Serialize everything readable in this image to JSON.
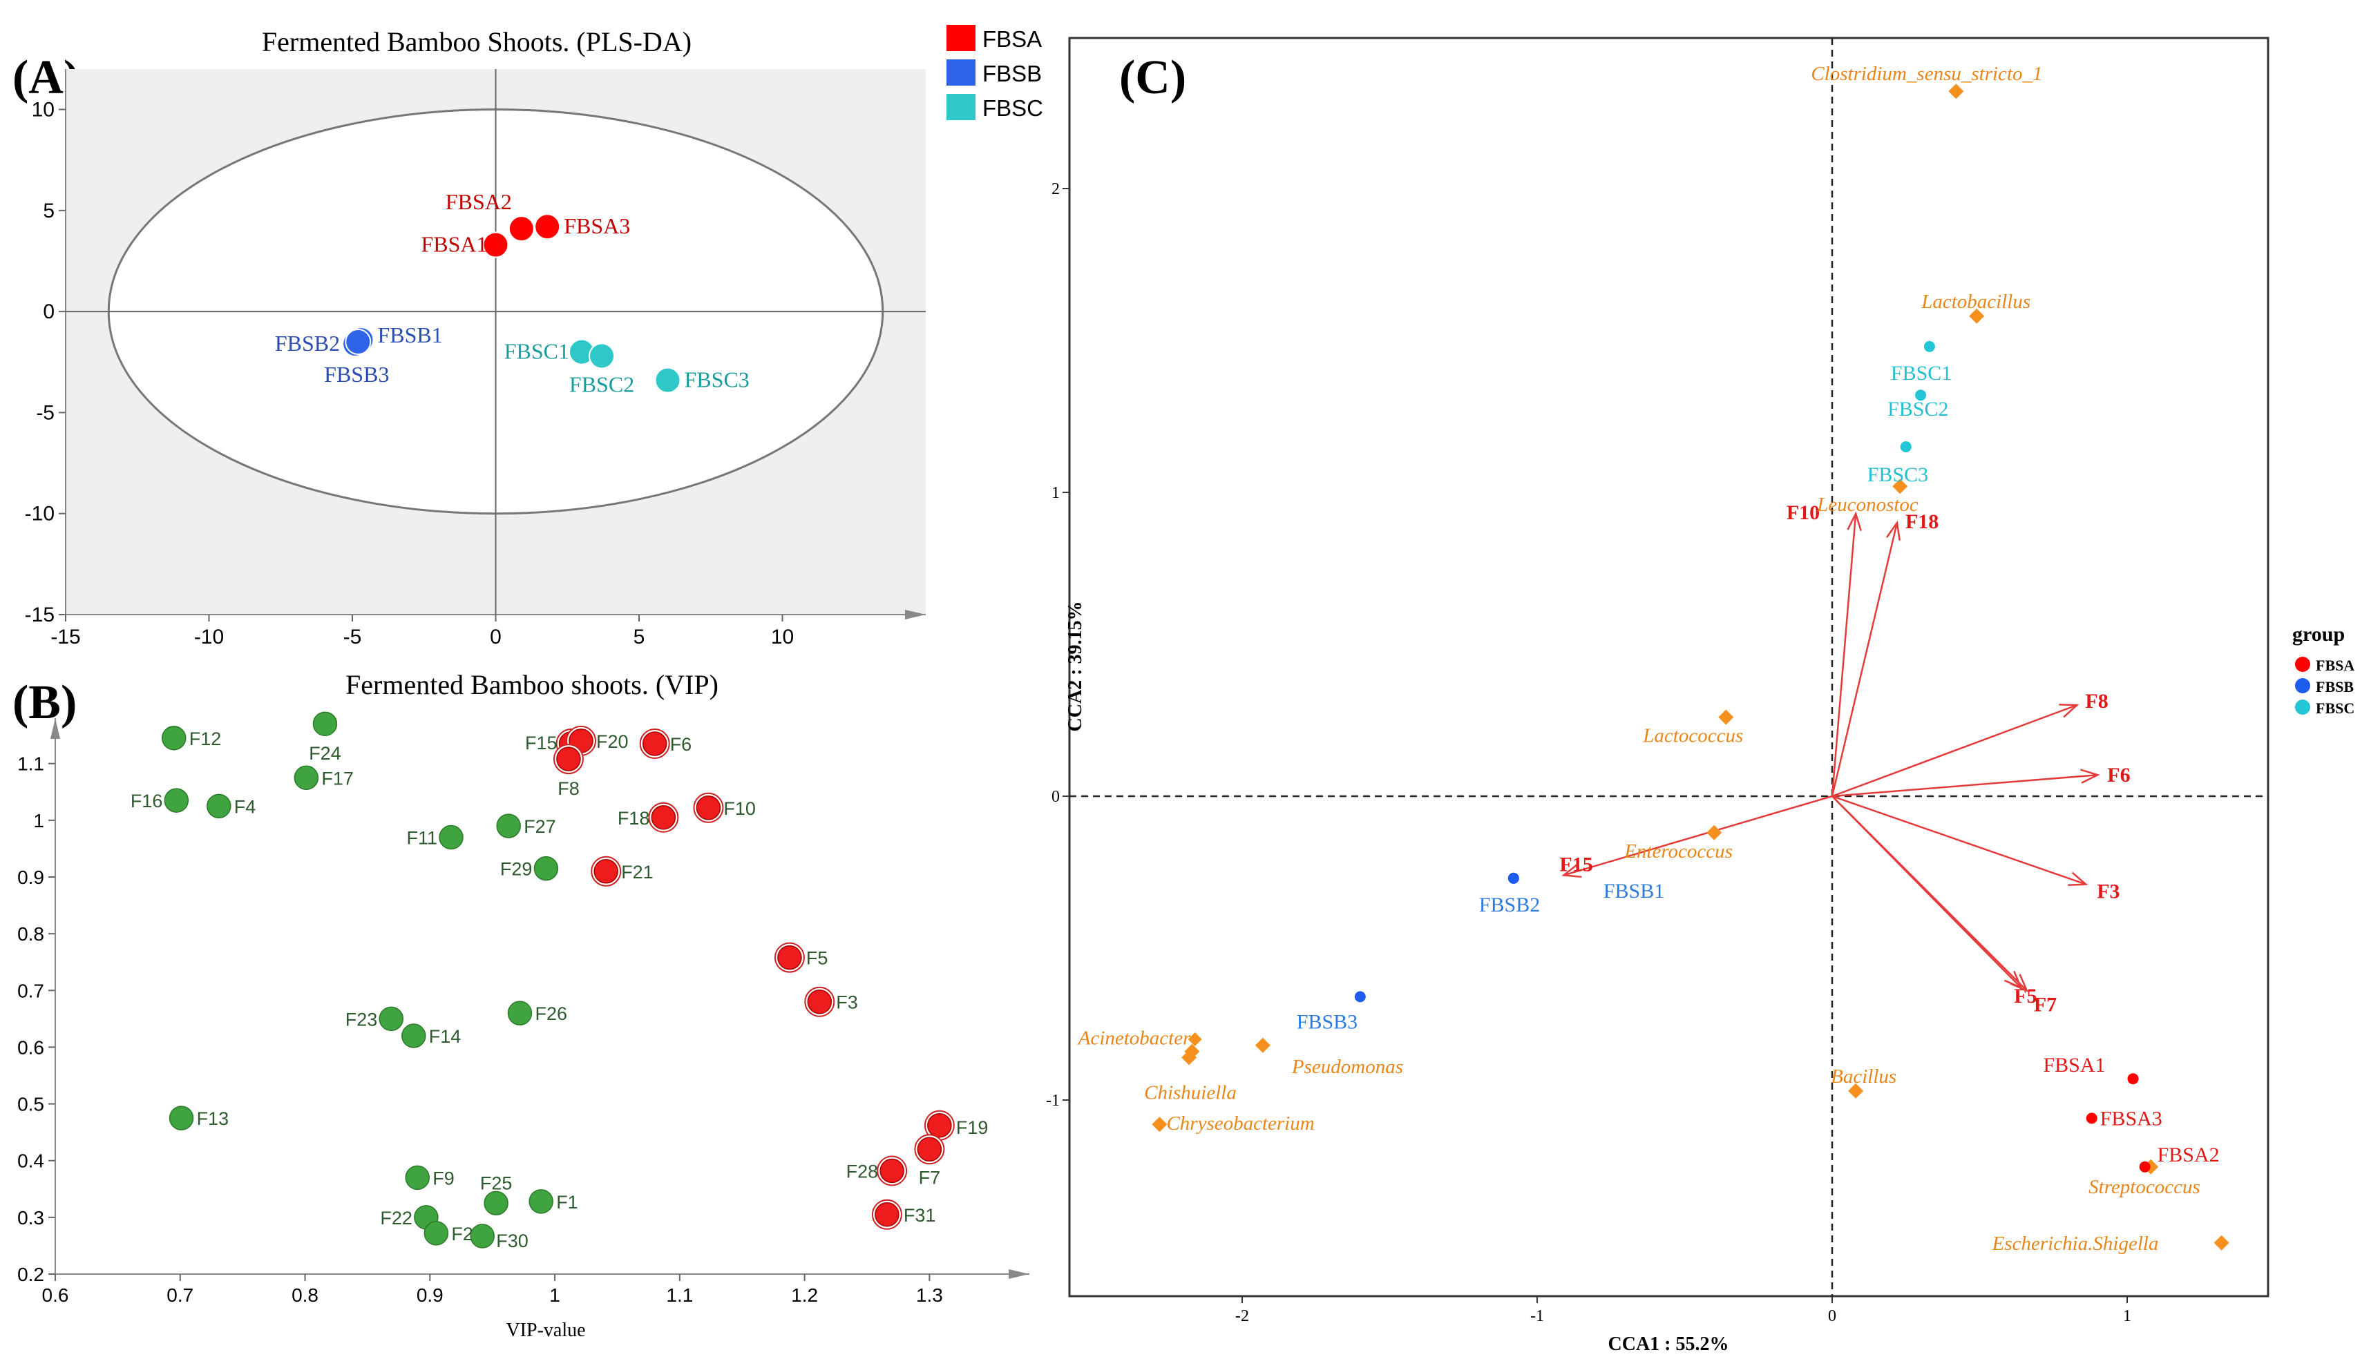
{
  "chart_data": [
    {
      "panel_label": "(A)",
      "type": "scatter",
      "title": "Fermented Bamboo Shoots. (PLS-DA)",
      "xlim": [
        -15,
        15
      ],
      "ylim": [
        -15,
        12
      ],
      "x_ticks": [
        "-15",
        "-10",
        "-5",
        "0",
        "5",
        "10"
      ],
      "y_ticks": [
        "10",
        "5",
        "0",
        "-5",
        "-10",
        "-15"
      ],
      "legend": [
        {
          "label": "FBSA",
          "color": "#ff0000"
        },
        {
          "label": "FBSB",
          "color": "#2f64e8"
        },
        {
          "label": "FBSC",
          "color": "#2ec8c8"
        }
      ],
      "ellipse": {
        "cx": 0,
        "cy": 0,
        "rx": 13.5,
        "ry": 10
      },
      "points": [
        {
          "label": "FBSA1",
          "x": 0.0,
          "y": 3.3,
          "group": "FBSA"
        },
        {
          "label": "FBSA2",
          "x": 0.9,
          "y": 4.1,
          "group": "FBSA"
        },
        {
          "label": "FBSA3",
          "x": 1.8,
          "y": 4.2,
          "group": "FBSA"
        },
        {
          "label": "FBSB1",
          "x": -4.7,
          "y": -1.4,
          "group": "FBSB"
        },
        {
          "label": "FBSB2",
          "x": -4.9,
          "y": -1.6,
          "group": "FBSB"
        },
        {
          "label": "FBSB3",
          "x": -4.8,
          "y": -1.5,
          "group": "FBSB"
        },
        {
          "label": "FBSC1",
          "x": 3.0,
          "y": -2.0,
          "group": "FBSC"
        },
        {
          "label": "FBSC2",
          "x": 3.7,
          "y": -2.2,
          "group": "FBSC"
        },
        {
          "label": "FBSC3",
          "x": 6.0,
          "y": -3.4,
          "group": "FBSC"
        }
      ]
    },
    {
      "panel_label": "(B)",
      "type": "scatter",
      "title": "Fermented Bamboo shoots. (VIP)",
      "xlabel": "VIP-value",
      "xlim": [
        0.6,
        1.38
      ],
      "ylim": [
        0.2,
        1.18
      ],
      "x_ticks": [
        "0.6",
        "0.7",
        "0.8",
        "0.9",
        "1",
        "1.1",
        "1.2",
        "1.3"
      ],
      "y_ticks": [
        "1.1",
        "1",
        "0.9",
        "0.8",
        "0.7",
        "0.6",
        "0.5",
        "0.4",
        "0.3",
        "0.2"
      ],
      "points": [
        {
          "label": "F12",
          "x": 0.695,
          "y": 1.145,
          "group": "low"
        },
        {
          "label": "F24",
          "x": 0.816,
          "y": 1.17,
          "group": "low"
        },
        {
          "label": "F17",
          "x": 0.801,
          "y": 1.075,
          "group": "low"
        },
        {
          "label": "F16",
          "x": 0.697,
          "y": 1.035,
          "group": "low"
        },
        {
          "label": "F4",
          "x": 0.731,
          "y": 1.025,
          "group": "low"
        },
        {
          "label": "F27",
          "x": 0.963,
          "y": 0.99,
          "group": "low"
        },
        {
          "label": "F11",
          "x": 0.917,
          "y": 0.97,
          "group": "low"
        },
        {
          "label": "F29",
          "x": 0.993,
          "y": 0.915,
          "group": "low"
        },
        {
          "label": "F23",
          "x": 0.869,
          "y": 0.65,
          "group": "low"
        },
        {
          "label": "F14",
          "x": 0.887,
          "y": 0.62,
          "group": "low"
        },
        {
          "label": "F26",
          "x": 0.972,
          "y": 0.66,
          "group": "low"
        },
        {
          "label": "F13",
          "x": 0.701,
          "y": 0.475,
          "group": "low"
        },
        {
          "label": "F9",
          "x": 0.89,
          "y": 0.37,
          "group": "low"
        },
        {
          "label": "F25",
          "x": 0.953,
          "y": 0.325,
          "group": "low"
        },
        {
          "label": "F1",
          "x": 0.989,
          "y": 0.328,
          "group": "low"
        },
        {
          "label": "F22",
          "x": 0.897,
          "y": 0.3,
          "group": "low"
        },
        {
          "label": "F2",
          "x": 0.905,
          "y": 0.272,
          "group": "low"
        },
        {
          "label": "F30",
          "x": 0.942,
          "y": 0.267,
          "group": "low"
        },
        {
          "label": "F15",
          "x": 1.013,
          "y": 1.135,
          "group": "high"
        },
        {
          "label": "F20",
          "x": 1.021,
          "y": 1.14,
          "group": "high"
        },
        {
          "label": "F8",
          "x": 1.011,
          "y": 1.108,
          "group": "high"
        },
        {
          "label": "F6",
          "x": 1.08,
          "y": 1.135,
          "group": "high"
        },
        {
          "label": "F18",
          "x": 1.087,
          "y": 1.005,
          "group": "high"
        },
        {
          "label": "F10",
          "x": 1.123,
          "y": 1.022,
          "group": "high"
        },
        {
          "label": "F21",
          "x": 1.041,
          "y": 0.91,
          "group": "high"
        },
        {
          "label": "F5",
          "x": 1.188,
          "y": 0.758,
          "group": "high"
        },
        {
          "label": "F3",
          "x": 1.212,
          "y": 0.68,
          "group": "high"
        },
        {
          "label": "F19",
          "x": 1.308,
          "y": 0.462,
          "group": "high"
        },
        {
          "label": "F7",
          "x": 1.3,
          "y": 0.42,
          "group": "high"
        },
        {
          "label": "F28",
          "x": 1.27,
          "y": 0.382,
          "group": "high"
        },
        {
          "label": "F31",
          "x": 1.266,
          "y": 0.305,
          "group": "high"
        }
      ]
    },
    {
      "panel_label": "(C)",
      "type": "scatter",
      "xlabel": "CCA1 : 55.2%",
      "ylabel": "CCA2 : 39.15%",
      "xlim": [
        -2.5,
        1.5
      ],
      "ylim": [
        -1.65,
        2.5
      ],
      "x_ticks": [
        "-2",
        "-1",
        "0",
        "1"
      ],
      "y_ticks": [
        "2",
        "1",
        "0",
        "-1"
      ],
      "legend_title": "group",
      "legend": [
        {
          "label": "FBSA",
          "color": "#ff0000"
        },
        {
          "label": "FBSB",
          "color": "#1e5cf0"
        },
        {
          "label": "FBSC",
          "color": "#22c6d6"
        }
      ],
      "samples": [
        {
          "label": "FBSA1",
          "x": 1.02,
          "y": -0.93,
          "group": "FBSA"
        },
        {
          "label": "FBSA2",
          "x": 1.06,
          "y": -1.22,
          "group": "FBSA"
        },
        {
          "label": "FBSA3",
          "x": 0.88,
          "y": -1.06,
          "group": "FBSA"
        },
        {
          "label": "FBSB1",
          "x": -1.08,
          "y": -0.27,
          "group": "FBSB"
        },
        {
          "label": "FBSB2",
          "x": -1.08,
          "y": -0.27,
          "group": "FBSB"
        },
        {
          "label": "FBSB3",
          "x": -1.6,
          "y": -0.66,
          "group": "FBSB"
        },
        {
          "label": "FBSC1",
          "x": 0.33,
          "y": 1.48,
          "group": "FBSC"
        },
        {
          "label": "FBSC2",
          "x": 0.3,
          "y": 1.32,
          "group": "FBSC"
        },
        {
          "label": "FBSC3",
          "x": 0.25,
          "y": 1.15,
          "group": "FBSC"
        }
      ],
      "genera": [
        {
          "label": "Clostridium_sensu_stricto_1",
          "x": 0.42,
          "y": 2.32
        },
        {
          "label": "Lactobacillus",
          "x": 0.49,
          "y": 1.58
        },
        {
          "label": "Leuconostoc",
          "x": 0.23,
          "y": 1.02
        },
        {
          "label": "Lactococcus",
          "x": -0.36,
          "y": 0.26
        },
        {
          "label": "Enterococcus",
          "x": -0.4,
          "y": -0.12
        },
        {
          "label": "Acinetobacter",
          "x": -2.17,
          "y": -0.84
        },
        {
          "label": "Pseudomonas",
          "x": -1.93,
          "y": -0.82
        },
        {
          "label": "Chishuiella",
          "x": -2.18,
          "y": -0.86
        },
        {
          "label": "Chryseobacterium",
          "x": -2.28,
          "y": -1.08
        },
        {
          "label": "Bacillus",
          "x": 0.08,
          "y": -0.97
        },
        {
          "label": "Streptococcus",
          "x": 1.08,
          "y": -1.22
        },
        {
          "label": "Escherichia.Shigella",
          "x": 1.32,
          "y": -1.47
        }
      ],
      "vectors": [
        {
          "label": "F10",
          "x": 0.08,
          "y": 0.93
        },
        {
          "label": "F18",
          "x": 0.22,
          "y": 0.9
        },
        {
          "label": "F8",
          "x": 0.83,
          "y": 0.3
        },
        {
          "label": "F6",
          "x": 0.9,
          "y": 0.07
        },
        {
          "label": "F3",
          "x": 0.86,
          "y": -0.29
        },
        {
          "label": "F5",
          "x": 0.64,
          "y": -0.63
        },
        {
          "label": "F7",
          "x": 0.66,
          "y": -0.64
        },
        {
          "label": "F15",
          "x": -0.91,
          "y": -0.26
        }
      ]
    }
  ]
}
